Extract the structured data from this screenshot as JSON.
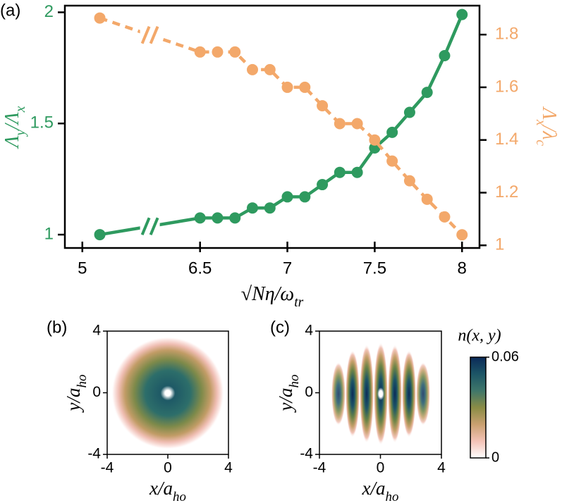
{
  "chart_data": [
    {
      "type": "line",
      "panel": "(a)",
      "x": [
        5.1,
        6.5,
        6.6,
        6.7,
        6.8,
        6.9,
        7.0,
        7.1,
        7.2,
        7.3,
        7.4,
        7.5,
        7.6,
        7.7,
        7.8,
        7.9,
        8.0
      ],
      "series": [
        {
          "color": "#2e9a5f",
          "dashed": false,
          "values": [
            1.0,
            1.075,
            1.075,
            1.075,
            1.12,
            1.12,
            1.17,
            1.17,
            1.225,
            1.28,
            1.28,
            1.39,
            1.46,
            1.55,
            1.64,
            1.805,
            1.99
          ]
        },
        {
          "color": "#f3a86a",
          "dashed": true,
          "axis": "y2",
          "values": [
            1.863,
            1.734,
            1.734,
            1.734,
            1.667,
            1.667,
            1.6,
            1.6,
            1.53,
            1.462,
            1.462,
            1.4,
            1.32,
            1.245,
            1.175,
            1.108,
            1.04
          ]
        }
      ],
      "xlabel": [
        "√Nη/ω",
        "tr"
      ],
      "ylabel": [
        "Λ",
        "y",
        "/Λ",
        "x"
      ],
      "y2label": [
        "Λ",
        "x",
        "/λ",
        "c"
      ],
      "xlim": [
        4.9,
        8.1
      ],
      "xticks": [
        5,
        6.5,
        7,
        7.5,
        8
      ],
      "ylim": [
        0.94,
        2.03
      ],
      "yticks": [
        1,
        1.5,
        2
      ],
      "y2lim": [
        0.99,
        1.91
      ],
      "y2ticks": [
        1,
        1.2,
        1.4,
        1.6,
        1.8
      ]
    },
    {
      "type": "heatmap",
      "panel": "(b)",
      "xlabel": [
        "x/a",
        "ho"
      ],
      "ylabel": [
        "y/a",
        "ho"
      ],
      "xlim": [
        -4,
        4
      ],
      "ylim": [
        -4,
        4
      ],
      "xticks": [
        -4,
        0,
        4
      ],
      "yticks": [
        -4,
        0,
        4
      ]
    },
    {
      "type": "heatmap",
      "panel": "(c)",
      "xlabel": [
        "x/a",
        "ho"
      ],
      "ylabel": [
        "y/a",
        "ho"
      ],
      "xlim": [
        -4,
        4
      ],
      "ylim": [
        -4,
        4
      ],
      "xticks": [
        -4,
        0,
        4
      ],
      "yticks": [
        -4,
        0,
        4
      ],
      "colorbar": {
        "label": "n(x, y)",
        "lim": [
          0,
          0.06
        ],
        "ticks": [
          0,
          0.06
        ],
        "colors": [
          "#ffffff",
          "#f3c2b6",
          "#c9a070",
          "#8a8c45",
          "#3f766a",
          "#1c5566",
          "#0b2a58"
        ]
      }
    }
  ]
}
